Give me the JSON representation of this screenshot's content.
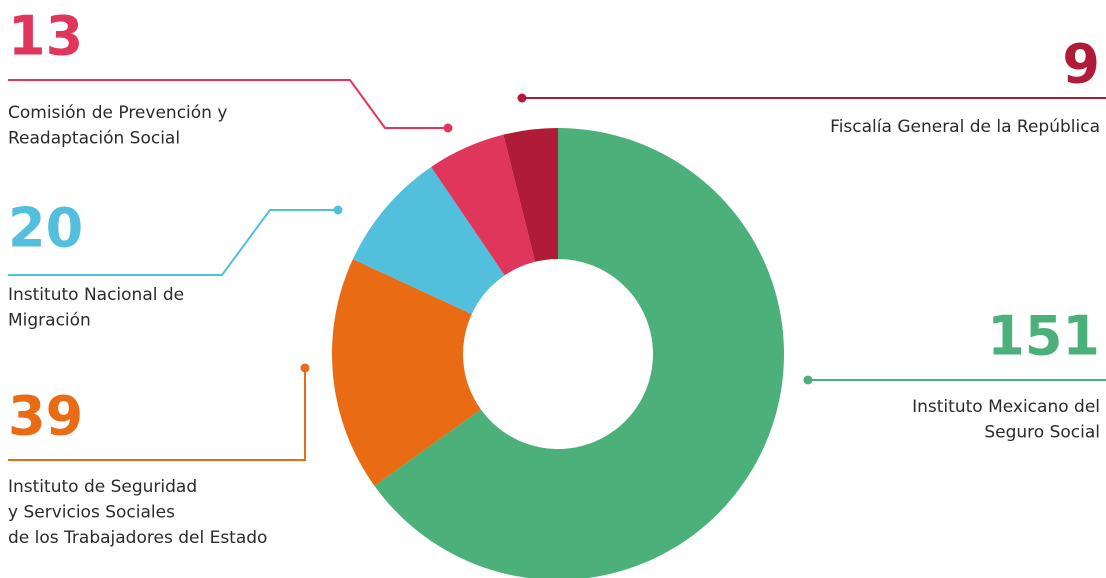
{
  "chart_data": {
    "type": "donut",
    "categories": [
      "Instituto Mexicano del\nSeguro Social",
      "Instituto de Seguridad\ny Servicios Sociales\nde los Trabajadores del Estado",
      "Instituto Nacional de\nMigración",
      "Comisión de Prevención y\nReadaptación Social",
      "Fiscalía General de la República"
    ],
    "values": [
      151,
      39,
      20,
      13,
      9
    ],
    "colors": [
      "#4bb07a",
      "#e96b14",
      "#52bfdd",
      "#e0365c",
      "#b01c37"
    ]
  }
}
